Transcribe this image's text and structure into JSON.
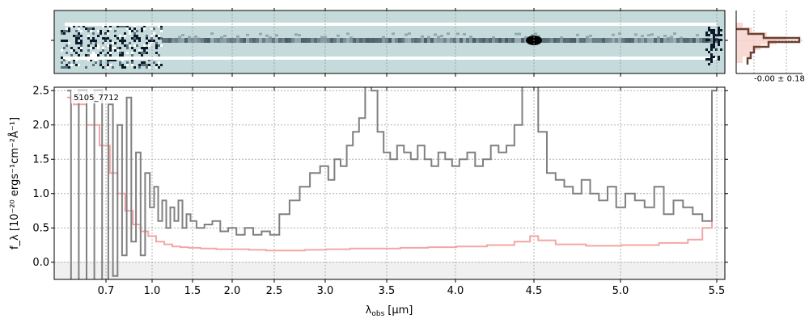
{
  "chart_data": [
    {
      "type": "heatmap",
      "panel": "2D spectrum",
      "description_values": "noise-weighted 2D spectrum, continuum trace with bright feature near 4.5 um",
      "xlim": [
        0.5,
        5.55
      ],
      "grid": true
    },
    {
      "type": "line",
      "panel": "1D spectrum",
      "label": "5105_7712",
      "xlabel_main": "λ",
      "xlabel_sub": "obs",
      "xlabel_unit": "[μm]",
      "ylabel": "f_λ [10⁻²⁰ ergs⁻¹cm⁻²Å⁻¹]",
      "ylim": [
        -0.25,
        2.55
      ],
      "yticks": [
        0.0,
        0.5,
        1.0,
        1.5,
        2.0,
        2.5
      ],
      "ytick_labels": [
        "0.0",
        "0.5",
        "1.0",
        "1.5",
        "2.0",
        "2.5"
      ],
      "xticks": [
        0.7,
        1.0,
        1.5,
        2.0,
        2.5,
        3.0,
        3.5,
        4.0,
        4.5,
        5.0,
        5.5
      ],
      "xtick_labels": [
        "0.7",
        "1.0",
        "1.5",
        "2.0",
        "2.5",
        "3.0",
        "3.5",
        "4.0",
        "4.5",
        "5.0",
        "5.5"
      ],
      "grid": true,
      "series": [
        {
          "role": "flux",
          "color": "#808080",
          "x": [
            0.55,
            0.58,
            0.61,
            0.64,
            0.67,
            0.7,
            0.73,
            0.76,
            0.79,
            0.82,
            0.85,
            0.88,
            0.91,
            0.94,
            0.97,
            1.0,
            1.05,
            1.1,
            1.15,
            1.2,
            1.25,
            1.3,
            1.35,
            1.4,
            1.45,
            1.5,
            1.6,
            1.7,
            1.8,
            1.9,
            2.0,
            2.1,
            2.2,
            2.3,
            2.4,
            2.5,
            2.6,
            2.7,
            2.8,
            2.9,
            3.0,
            3.05,
            3.1,
            3.15,
            3.2,
            3.25,
            3.3,
            3.35,
            3.4,
            3.45,
            3.5,
            3.55,
            3.6,
            3.65,
            3.7,
            3.75,
            3.8,
            3.85,
            3.9,
            3.95,
            4.0,
            4.05,
            4.1,
            4.15,
            4.2,
            4.25,
            4.3,
            4.35,
            4.4,
            4.45,
            4.5,
            4.55,
            4.6,
            4.65,
            4.7,
            4.75,
            4.8,
            4.85,
            4.9,
            4.95,
            5.0,
            5.05,
            5.1,
            5.15,
            5.2,
            5.25,
            5.3,
            5.35,
            5.4,
            5.45,
            5.5
          ],
          "y": [
            2.5,
            -0.3,
            2.5,
            -0.3,
            2.5,
            -0.3,
            2.3,
            -0.2,
            2.0,
            0.1,
            2.4,
            0.3,
            1.6,
            0.1,
            1.3,
            0.8,
            1.1,
            0.6,
            0.9,
            0.5,
            0.8,
            0.6,
            0.9,
            0.5,
            0.7,
            0.6,
            0.5,
            0.55,
            0.6,
            0.45,
            0.5,
            0.4,
            0.5,
            0.4,
            0.45,
            0.4,
            0.7,
            0.9,
            1.1,
            1.3,
            1.4,
            1.2,
            1.5,
            1.4,
            1.7,
            1.9,
            2.1,
            2.6,
            2.5,
            1.9,
            1.6,
            1.5,
            1.7,
            1.6,
            1.5,
            1.7,
            1.5,
            1.4,
            1.6,
            1.5,
            1.4,
            1.5,
            1.6,
            1.4,
            1.5,
            1.7,
            1.6,
            1.7,
            2.0,
            2.6,
            2.6,
            1.9,
            1.3,
            1.2,
            1.1,
            1.0,
            1.2,
            1.0,
            0.9,
            1.1,
            0.8,
            1.0,
            0.9,
            0.8,
            1.1,
            0.7,
            0.9,
            0.8,
            0.7,
            0.6,
            2.5
          ]
        },
        {
          "role": "error",
          "color": "#f4a6a6",
          "x": [
            0.55,
            0.6,
            0.65,
            0.7,
            0.75,
            0.8,
            0.85,
            0.9,
            0.95,
            1.0,
            1.1,
            1.2,
            1.3,
            1.4,
            1.5,
            1.7,
            1.9,
            2.1,
            2.3,
            2.5,
            2.7,
            2.9,
            3.1,
            3.3,
            3.5,
            3.7,
            3.9,
            4.1,
            4.3,
            4.45,
            4.5,
            4.55,
            4.7,
            4.9,
            5.1,
            5.3,
            5.4,
            5.45,
            5.5
          ],
          "y": [
            2.4,
            2.3,
            2.0,
            1.7,
            1.3,
            1.0,
            0.75,
            0.55,
            0.45,
            0.38,
            0.3,
            0.26,
            0.23,
            0.22,
            0.21,
            0.2,
            0.19,
            0.19,
            0.18,
            0.17,
            0.17,
            0.18,
            0.19,
            0.2,
            0.2,
            0.21,
            0.22,
            0.23,
            0.25,
            0.3,
            0.38,
            0.32,
            0.26,
            0.24,
            0.25,
            0.28,
            0.33,
            0.5,
            2.5
          ]
        }
      ]
    },
    {
      "type": "line",
      "panel": "histogram",
      "annotation": "-0.00 ± 0.18"
    }
  ],
  "colors": {
    "flux": "#808080",
    "error": "#f4a6a6",
    "histogram": "#6b4032",
    "spec2d_bg": "#c5dada",
    "grid": "#b0b0b0"
  }
}
